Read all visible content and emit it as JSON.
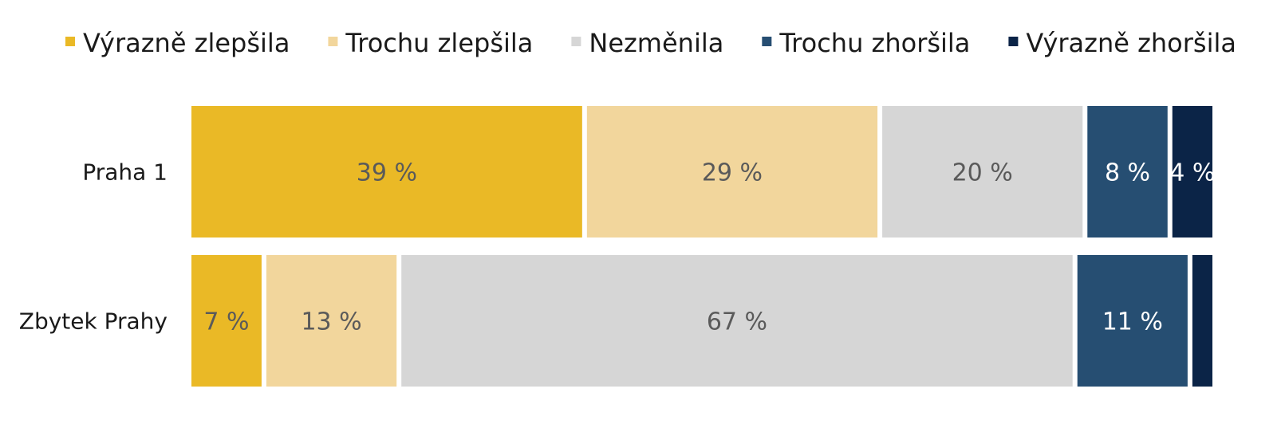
{
  "chart_data": {
    "type": "bar",
    "orientation": "horizontal",
    "stacked": true,
    "normalized": true,
    "categories": [
      "Praha 1",
      "Zbytek Prahy"
    ],
    "series": [
      {
        "name": "Výrazně zlepšila",
        "values": [
          39,
          7
        ],
        "color": "#EAB926",
        "label_color": "#5a5a5a"
      },
      {
        "name": "Trochu zlepšila",
        "values": [
          29,
          13
        ],
        "color": "#F2D69C",
        "label_color": "#5a5a5a"
      },
      {
        "name": "Nezměnila",
        "values": [
          20,
          67
        ],
        "color": "#D6D6D6",
        "label_color": "#5a5a5a"
      },
      {
        "name": "Trochu zhoršila",
        "values": [
          8,
          11
        ],
        "color": "#264E72",
        "label_color": "#ffffff"
      },
      {
        "name": "Výrazně zhoršila",
        "values": [
          4,
          2
        ],
        "color": "#0B2447",
        "label_color": "#ffffff"
      }
    ],
    "data_labels": [
      [
        "39 %",
        "29 %",
        "20 %",
        "8 %",
        "4 %"
      ],
      [
        "7 %",
        "13 %",
        "67 %",
        "11 %",
        ""
      ]
    ],
    "legend_position": "top",
    "grid": false,
    "xlim": [
      0,
      100
    ]
  }
}
